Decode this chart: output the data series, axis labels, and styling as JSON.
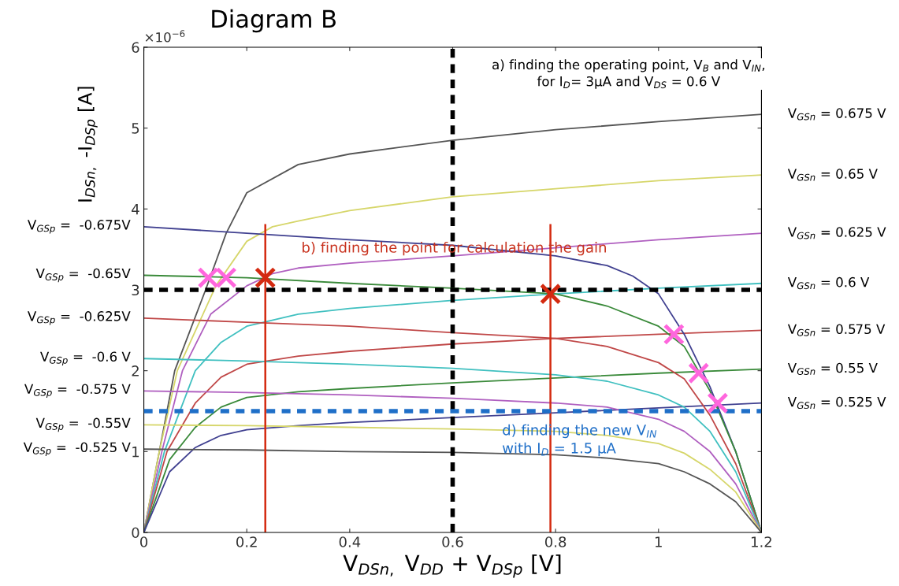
{
  "chart_data": {
    "type": "line",
    "title": "Diagram B",
    "xlabel": "V$_{DSn,}$ V$_{DD}$ + V$_{DSp}$ [V]",
    "ylabel": "I$_{DSn,}$ -I$_{DSp}$ [A]",
    "xlim": [
      0,
      1.2
    ],
    "ylim": [
      0,
      6
    ],
    "xticks": [
      0,
      0.2,
      0.4,
      0.6,
      0.8,
      1,
      1.2
    ],
    "yticks": [
      0,
      1,
      2,
      3,
      4,
      5,
      6
    ],
    "grid": false,
    "legend": false,
    "annotations": [
      "×10$^{−6}$",
      "a) finding the operating point, V$_{B}$ and V$_{IN}$,\nfor I$_{D}$= 3μA and V$_{DS}$ = 0.6 V",
      "b) finding the point for calculation the gain",
      "d) finding the new V$_{IN}$\nwith I$_{D}$ = 1.5 μA"
    ],
    "ref_lines": [
      {
        "axis": "x",
        "value": 0.6,
        "color": "#000000",
        "line_style": "dashed"
      },
      {
        "axis": "y",
        "value": 3,
        "color": "#000000",
        "line_style": "dashed"
      },
      {
        "axis": "y",
        "value": 1.5,
        "color": "#1f6fc8",
        "line_style": "dashed"
      }
    ],
    "series": [
      {
        "name": "V$_{GSn}$ = 0.675 V",
        "color": "#555555",
        "x": [
          0,
          0.03,
          0.06,
          0.12,
          0.16,
          0.2,
          0.3,
          0.4,
          0.6,
          0.8,
          1.0,
          1.2
        ],
        "values": [
          0,
          1.0,
          2.0,
          3.0,
          3.7,
          4.2,
          4.55,
          4.68,
          4.85,
          4.98,
          5.08,
          5.17
        ]
      },
      {
        "name": "V$_{GSn}$ = 0.65 V",
        "color": "#d6d66a",
        "x": [
          0,
          0.03,
          0.065,
          0.14,
          0.2,
          0.25,
          0.3,
          0.4,
          0.6,
          0.8,
          1.0,
          1.2
        ],
        "values": [
          0,
          1.0,
          2.0,
          3.05,
          3.6,
          3.78,
          3.85,
          3.98,
          4.15,
          4.25,
          4.35,
          4.42
        ]
      },
      {
        "name": "V$_{GSn}$ = 0.625 V",
        "color": "#b060c0",
        "x": [
          0,
          0.035,
          0.075,
          0.13,
          0.2,
          0.25,
          0.3,
          0.4,
          0.6,
          0.8,
          1.0,
          1.2
        ],
        "values": [
          0,
          1.0,
          2.0,
          2.7,
          3.05,
          3.2,
          3.27,
          3.33,
          3.42,
          3.52,
          3.62,
          3.7
        ]
      },
      {
        "name": "V$_{GSn}$ = 0.6 V",
        "color": "#40c0c0",
        "x": [
          0,
          0.04,
          0.1,
          0.15,
          0.2,
          0.3,
          0.4,
          0.6,
          0.8,
          1.0,
          1.2
        ],
        "values": [
          0,
          1.0,
          2.0,
          2.35,
          2.55,
          2.7,
          2.77,
          2.87,
          2.95,
          3.02,
          3.08
        ]
      },
      {
        "name": "V$_{GSn}$ = 0.575 V",
        "color": "#c04848",
        "x": [
          0,
          0.045,
          0.1,
          0.15,
          0.2,
          0.3,
          0.4,
          0.6,
          0.8,
          1.0,
          1.2
        ],
        "values": [
          0,
          1.0,
          1.6,
          1.92,
          2.08,
          2.18,
          2.24,
          2.33,
          2.4,
          2.45,
          2.5
        ]
      },
      {
        "name": "V$_{GSn}$ = 0.55 V",
        "color": "#3a8a3a",
        "x": [
          0,
          0.05,
          0.1,
          0.15,
          0.2,
          0.3,
          0.4,
          0.6,
          0.8,
          1.0,
          1.2
        ],
        "values": [
          0,
          0.9,
          1.3,
          1.55,
          1.67,
          1.74,
          1.78,
          1.85,
          1.91,
          1.97,
          2.02
        ]
      },
      {
        "name": "V$_{GSn}$ = 0.525 V",
        "color": "#404090",
        "x": [
          0,
          0.05,
          0.1,
          0.15,
          0.2,
          0.3,
          0.4,
          0.6,
          0.8,
          1.0,
          1.2
        ],
        "values": [
          0,
          0.75,
          1.05,
          1.2,
          1.27,
          1.32,
          1.36,
          1.42,
          1.48,
          1.54,
          1.6
        ]
      },
      {
        "name": "V$_{GSp}$ =  -0.675V",
        "color": "#404090",
        "x": [
          0,
          0.2,
          0.4,
          0.6,
          0.8,
          0.9,
          0.95,
          1.0,
          1.05,
          1.1,
          1.15,
          1.2
        ],
        "values": [
          3.78,
          3.7,
          3.62,
          3.55,
          3.42,
          3.3,
          3.17,
          2.95,
          2.45,
          1.8,
          1.0,
          0
        ]
      },
      {
        "name": "V$_{GSp}$ =  -0.65V",
        "color": "#3a8a3a",
        "x": [
          0,
          0.2,
          0.4,
          0.6,
          0.8,
          0.9,
          1.0,
          1.05,
          1.1,
          1.15,
          1.2
        ],
        "values": [
          3.18,
          3.15,
          3.08,
          3.02,
          2.95,
          2.8,
          2.55,
          2.3,
          1.75,
          1.0,
          0
        ]
      },
      {
        "name": "V$_{GSp}$ =  -0.625V",
        "color": "#c04848",
        "x": [
          0,
          0.2,
          0.4,
          0.6,
          0.8,
          0.9,
          1.0,
          1.05,
          1.1,
          1.15,
          1.2
        ],
        "values": [
          2.65,
          2.6,
          2.55,
          2.47,
          2.4,
          2.3,
          2.1,
          1.9,
          1.45,
          0.85,
          0
        ]
      },
      {
        "name": "V$_{GSp}$ =  -0.6 V",
        "color": "#40c0c0",
        "x": [
          0,
          0.2,
          0.4,
          0.6,
          0.8,
          0.9,
          1.0,
          1.05,
          1.1,
          1.15,
          1.2
        ],
        "values": [
          2.15,
          2.12,
          2.08,
          2.03,
          1.95,
          1.87,
          1.7,
          1.55,
          1.25,
          0.75,
          0
        ]
      },
      {
        "name": "V$_{GSp}$ =  -0.575 V",
        "color": "#b060c0",
        "x": [
          0,
          0.2,
          0.4,
          0.6,
          0.8,
          0.9,
          1.0,
          1.05,
          1.1,
          1.15,
          1.2
        ],
        "values": [
          1.75,
          1.73,
          1.7,
          1.66,
          1.6,
          1.55,
          1.4,
          1.25,
          1.0,
          0.6,
          0
        ]
      },
      {
        "name": "V$_{GSp}$ =  -0.55V",
        "color": "#d6d66a",
        "x": [
          0,
          0.2,
          0.4,
          0.6,
          0.8,
          0.9,
          1.0,
          1.05,
          1.1,
          1.15,
          1.2
        ],
        "values": [
          1.33,
          1.32,
          1.3,
          1.28,
          1.25,
          1.2,
          1.1,
          0.98,
          0.78,
          0.5,
          0
        ]
      },
      {
        "name": "V$_{GSp}$ =  -0.525 V",
        "color": "#555555",
        "x": [
          0,
          0.2,
          0.4,
          0.6,
          0.8,
          0.9,
          1.0,
          1.05,
          1.1,
          1.15,
          1.2
        ],
        "values": [
          1.03,
          1.02,
          1.0,
          0.99,
          0.96,
          0.92,
          0.85,
          0.75,
          0.6,
          0.38,
          0
        ]
      },
      {
        "type": "line",
        "color": "#d42a10",
        "x": [
          0.236,
          0.236
        ],
        "values": [
          0,
          3.8
        ]
      },
      {
        "type": "line",
        "color": "#d42a10",
        "x": [
          0.79,
          0.79
        ],
        "values": [
          0,
          3.8
        ]
      },
      {
        "type": "scatter",
        "marker": "cross",
        "color": "#ff66dd",
        "x": [
          0.125,
          0.16,
          1.03,
          1.078,
          1.115
        ],
        "values": [
          3.15,
          3.15,
          2.45,
          1.97,
          1.6
        ]
      },
      {
        "type": "scatter",
        "marker": "cross",
        "color": "#d42a10",
        "x": [
          0.236,
          0.79
        ],
        "values": [
          3.15,
          2.95
        ]
      }
    ]
  }
}
